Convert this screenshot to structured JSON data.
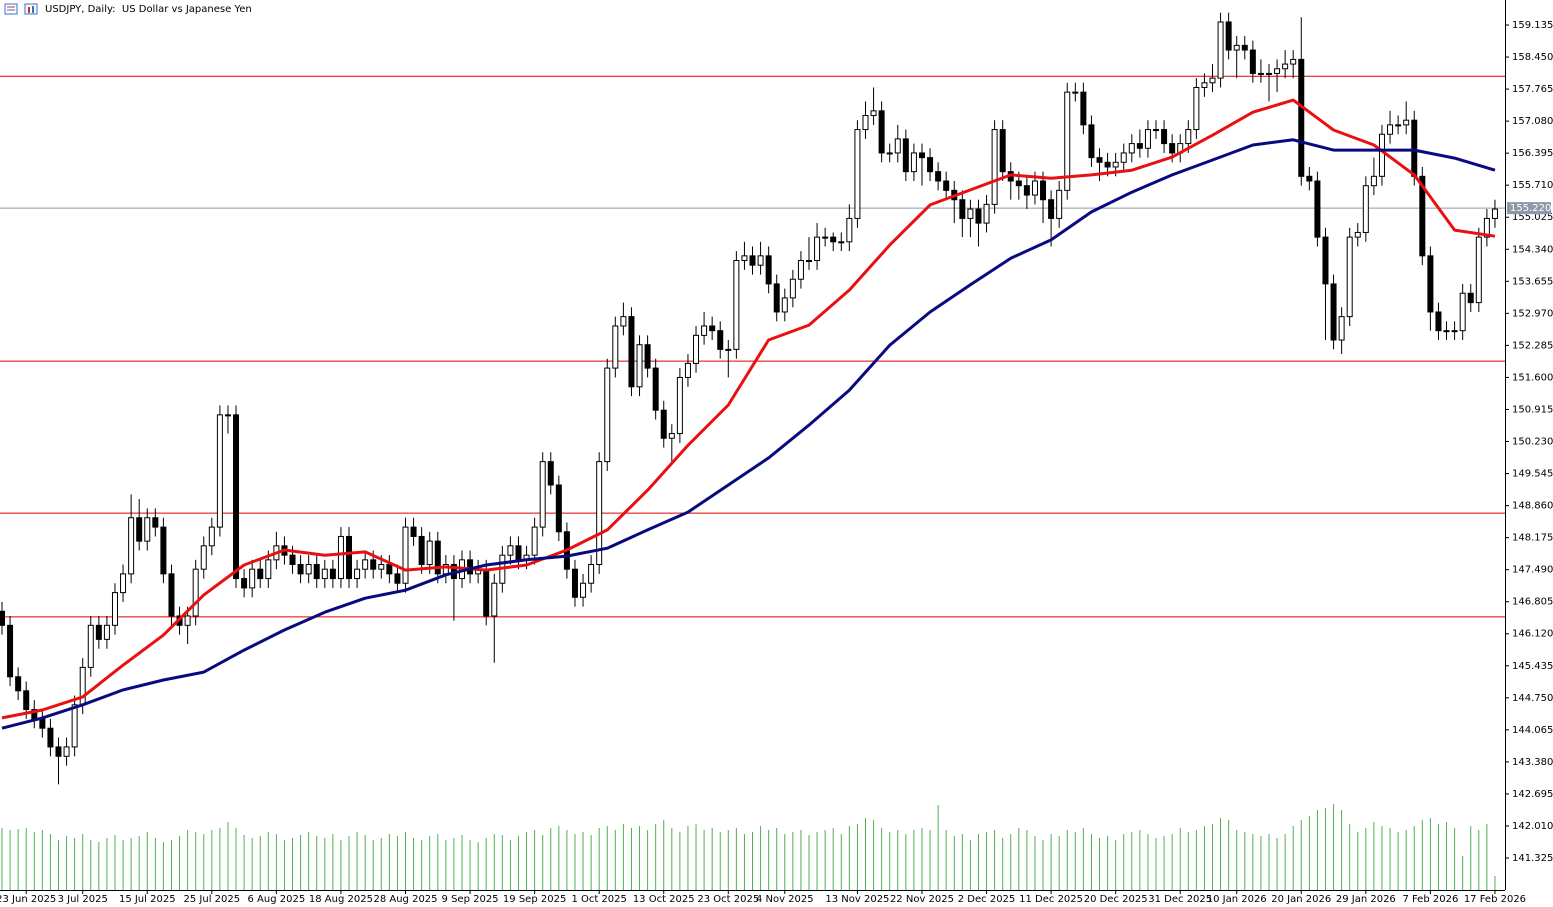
{
  "chart_data": {
    "type": "candlestick",
    "title": "USDJPY, Daily:  US Dollar vs Japanese Yen",
    "up_color": "#ffffff",
    "down_color": "#000000",
    "wick_color": "#000000",
    "ylim": [
      140.641,
      159.67
    ],
    "yticks": [
      159.135,
      {
        "value": 158.45,
        "label": "158.450"
      },
      157.765,
      {
        "value": 157.08,
        "label": "157.080"
      },
      156.395,
      {
        "value": 155.71,
        "label": "155.710"
      },
      155.025,
      {
        "value": 154.34,
        "label": "154.340"
      },
      153.655,
      {
        "value": 152.97,
        "label": "152.970"
      },
      152.285,
      {
        "value": 151.6,
        "label": "151.600"
      },
      150.915,
      {
        "value": 150.23,
        "label": "150.230"
      },
      149.545,
      {
        "value": 148.86,
        "label": "148.860"
      },
      148.175,
      {
        "value": 147.49,
        "label": "147.490"
      },
      146.805,
      {
        "value": 146.12,
        "label": "146.120"
      },
      145.435,
      {
        "value": 144.75,
        "label": "144.750"
      },
      144.065,
      {
        "value": 143.38,
        "label": "143.380"
      },
      142.695,
      {
        "value": 142.01,
        "label": "142.010"
      },
      141.325
    ],
    "xticks": [
      {
        "value": 3,
        "label": "23 Jun 2025"
      },
      {
        "value": 10,
        "label": "3 Jul 2025"
      },
      {
        "value": 18,
        "label": "15 Jul 2025"
      },
      {
        "value": 26,
        "label": "25 Jul 2025"
      },
      {
        "value": 34,
        "label": "6 Aug 2025"
      },
      {
        "value": 42,
        "label": "18 Aug 2025"
      },
      {
        "value": 50,
        "label": "28 Aug 2025"
      },
      {
        "value": 58,
        "label": "9 Sep 2025"
      },
      {
        "value": 66,
        "label": "19 Sep 2025"
      },
      {
        "value": 74,
        "label": "1 Oct 2025"
      },
      {
        "value": 82,
        "label": "13 Oct 2025"
      },
      {
        "value": 90,
        "label": "23 Oct 2025"
      },
      {
        "value": 97,
        "label": "4 Nov 2025"
      },
      {
        "value": 106,
        "label": "13 Nov 2025"
      },
      {
        "value": 114,
        "label": "22 Nov 2025"
      },
      {
        "value": 122,
        "label": "2 Dec 2025"
      },
      {
        "value": 130,
        "label": "11 Dec 2025"
      },
      {
        "value": 138,
        "label": "20 Dec 2025"
      },
      {
        "value": 146,
        "label": "31 Dec 2025"
      },
      {
        "value": 153,
        "label": "10 Jan 2026"
      },
      {
        "value": 161,
        "label": "20 Jan 2026"
      },
      {
        "value": 169,
        "label": "29 Jan 2026"
      },
      {
        "value": 177,
        "label": "7 Feb 2026"
      },
      {
        "value": 185,
        "label": "17 Feb 2026"
      }
    ],
    "open": [
      146.6,
      146.3,
      145.2,
      144.9,
      144.5,
      144.3,
      144.1,
      143.7,
      143.5,
      143.7,
      144.6,
      145.4,
      146.3,
      146.0,
      146.3,
      147.0,
      147.4,
      148.6,
      148.1,
      148.6,
      148.4,
      147.4,
      146.5,
      146.3,
      146.5,
      147.5,
      148.0,
      148.4,
      150.8,
      150.8,
      147.3,
      147.1,
      147.5,
      147.3,
      147.7,
      148.0,
      147.8,
      147.6,
      147.4,
      147.6,
      147.3,
      147.5,
      147.3,
      148.2,
      147.3,
      147.5,
      147.7,
      147.5,
      147.6,
      147.4,
      147.2,
      148.4,
      148.2,
      147.6,
      148.1,
      147.4,
      147.6,
      147.3,
      147.7,
      147.4,
      147.5,
      146.5,
      147.2,
      147.8,
      148.0,
      147.7,
      147.8,
      148.4,
      149.8,
      149.3,
      148.3,
      147.5,
      146.9,
      147.2,
      147.6,
      149.8,
      151.8,
      152.7,
      152.9,
      151.4,
      152.3,
      151.8,
      150.9,
      150.3,
      150.4,
      151.6,
      151.9,
      152.5,
      152.7,
      152.6,
      152.2,
      152.2,
      154.1,
      154.2,
      154.0,
      154.2,
      153.6,
      153.0,
      153.3,
      153.7,
      154.1,
      154.1,
      154.6,
      154.6,
      154.5,
      154.5,
      155.0,
      156.9,
      157.2,
      157.3,
      156.4,
      156.4,
      156.7,
      156.0,
      156.4,
      156.3,
      156.0,
      155.8,
      155.6,
      155.4,
      155.0,
      155.2,
      154.9,
      155.3,
      156.9,
      156.0,
      155.8,
      155.7,
      155.5,
      155.8,
      155.4,
      155.0,
      155.6,
      157.7,
      157.7,
      157.0,
      156.3,
      156.2,
      156.1,
      156.2,
      156.4,
      156.6,
      156.5,
      156.9,
      156.9,
      156.6,
      156.4,
      156.6,
      156.9,
      157.8,
      157.9,
      158.0,
      159.2,
      158.6,
      158.7,
      158.6,
      158.1,
      158.1,
      158.1,
      158.2,
      158.3,
      158.4,
      155.9,
      155.8,
      154.6,
      153.6,
      152.4,
      152.9,
      154.6,
      154.7,
      155.7,
      155.9,
      156.8,
      157.0,
      157.0,
      157.1,
      155.9,
      154.2,
      153.0,
      152.6,
      152.6,
      152.6,
      153.4,
      153.2,
      154.6,
      155.0
    ],
    "high": [
      146.8,
      146.5,
      145.4,
      145.1,
      144.7,
      144.5,
      144.3,
      143.9,
      143.9,
      144.8,
      145.6,
      146.5,
      146.5,
      146.5,
      147.2,
      147.6,
      149.1,
      149.0,
      148.8,
      148.8,
      148.6,
      147.6,
      146.7,
      146.7,
      147.7,
      148.2,
      148.6,
      151.0,
      151.0,
      151.0,
      147.5,
      147.7,
      147.7,
      147.9,
      148.3,
      148.2,
      148.0,
      147.8,
      147.8,
      147.8,
      147.7,
      147.7,
      148.4,
      148.4,
      147.7,
      147.9,
      147.9,
      147.8,
      147.8,
      147.6,
      148.6,
      148.6,
      148.4,
      148.3,
      148.3,
      147.8,
      147.8,
      147.9,
      147.9,
      147.7,
      147.7,
      147.4,
      148.0,
      148.2,
      148.2,
      148.0,
      148.6,
      150.0,
      150.0,
      149.5,
      148.5,
      147.7,
      147.4,
      147.8,
      150.0,
      152.0,
      152.9,
      153.2,
      153.1,
      152.5,
      152.5,
      152.0,
      151.1,
      150.6,
      151.8,
      152.1,
      152.7,
      153.0,
      152.9,
      152.8,
      152.4,
      154.3,
      154.5,
      154.4,
      154.5,
      154.4,
      153.8,
      153.5,
      153.9,
      154.3,
      154.6,
      154.9,
      154.8,
      154.7,
      154.7,
      155.3,
      157.1,
      157.5,
      157.8,
      157.5,
      156.6,
      157.0,
      156.9,
      156.6,
      156.6,
      156.5,
      156.2,
      156.0,
      155.8,
      155.6,
      155.4,
      155.4,
      155.5,
      157.1,
      157.1,
      156.2,
      156.0,
      155.9,
      156.0,
      156.0,
      155.6,
      155.8,
      157.9,
      157.9,
      157.9,
      157.2,
      156.5,
      156.4,
      156.4,
      156.6,
      156.8,
      156.9,
      157.1,
      157.1,
      157.1,
      156.8,
      156.8,
      157.1,
      158.0,
      158.1,
      158.3,
      159.4,
      159.4,
      158.9,
      158.9,
      158.8,
      158.4,
      158.3,
      158.4,
      158.6,
      158.6,
      159.3,
      156.1,
      156.0,
      154.8,
      153.8,
      153.1,
      154.8,
      154.9,
      155.9,
      156.3,
      157.0,
      157.3,
      157.2,
      157.5,
      157.3,
      156.1,
      154.4,
      153.2,
      152.8,
      152.8,
      153.6,
      153.6,
      154.8,
      155.2,
      155.4
    ],
    "low": [
      146.1,
      145.0,
      144.7,
      144.3,
      144.1,
      143.9,
      143.5,
      142.9,
      143.3,
      143.5,
      144.4,
      145.2,
      145.8,
      145.8,
      146.1,
      146.8,
      147.2,
      147.9,
      147.9,
      148.2,
      147.2,
      146.3,
      146.1,
      145.9,
      146.3,
      147.3,
      147.8,
      148.2,
      150.4,
      147.1,
      146.9,
      146.9,
      147.1,
      147.1,
      147.5,
      147.6,
      147.4,
      147.2,
      147.2,
      147.1,
      147.1,
      147.1,
      147.1,
      147.1,
      147.1,
      147.3,
      147.3,
      147.3,
      147.2,
      147.0,
      147.0,
      148.0,
      147.4,
      147.4,
      147.2,
      147.2,
      146.4,
      147.1,
      147.2,
      147.2,
      146.3,
      145.5,
      147.0,
      147.6,
      147.5,
      147.5,
      147.6,
      148.2,
      149.1,
      148.1,
      147.3,
      146.7,
      146.7,
      147.0,
      147.4,
      149.6,
      151.6,
      152.5,
      151.2,
      151.2,
      151.6,
      150.7,
      150.1,
      149.8,
      150.2,
      151.4,
      151.7,
      152.3,
      152.4,
      152.0,
      151.6,
      152.0,
      153.9,
      153.8,
      153.8,
      153.4,
      152.8,
      152.8,
      153.1,
      153.5,
      153.9,
      153.9,
      154.4,
      154.3,
      154.3,
      154.3,
      154.8,
      156.7,
      157.0,
      156.2,
      156.2,
      156.2,
      155.8,
      155.8,
      155.7,
      155.8,
      155.6,
      155.4,
      154.9,
      154.6,
      154.6,
      154.4,
      154.7,
      155.1,
      155.8,
      155.4,
      155.4,
      155.2,
      155.3,
      154.9,
      154.4,
      154.8,
      155.4,
      157.5,
      156.8,
      156.1,
      155.8,
      155.9,
      155.9,
      156.0,
      156.2,
      156.3,
      156.3,
      156.7,
      156.4,
      156.2,
      156.2,
      156.4,
      156.7,
      157.6,
      157.7,
      157.8,
      158.4,
      158.0,
      158.4,
      157.9,
      157.9,
      157.5,
      157.7,
      158.0,
      158.0,
      155.7,
      155.6,
      154.4,
      152.4,
      152.2,
      152.1,
      152.7,
      154.4,
      154.5,
      155.5,
      155.7,
      156.6,
      156.8,
      156.8,
      155.7,
      154.0,
      152.6,
      152.4,
      152.4,
      152.4,
      152.4,
      153.0,
      153.0,
      154.4,
      154.8
    ],
    "close": [
      146.3,
      145.2,
      144.9,
      144.5,
      144.3,
      144.1,
      143.7,
      143.5,
      143.7,
      144.6,
      145.4,
      146.3,
      146.0,
      146.3,
      147.0,
      147.4,
      148.6,
      148.1,
      148.6,
      148.4,
      147.4,
      146.5,
      146.3,
      146.5,
      147.5,
      148.0,
      148.4,
      150.8,
      150.8,
      147.3,
      147.1,
      147.5,
      147.3,
      147.7,
      148.0,
      147.8,
      147.6,
      147.4,
      147.6,
      147.3,
      147.5,
      147.3,
      148.2,
      147.3,
      147.5,
      147.7,
      147.5,
      147.6,
      147.4,
      147.2,
      148.4,
      148.2,
      147.6,
      148.1,
      147.4,
      147.6,
      147.3,
      147.7,
      147.4,
      147.5,
      146.5,
      147.2,
      147.8,
      148.0,
      147.7,
      147.8,
      148.4,
      149.8,
      149.3,
      148.3,
      147.5,
      146.9,
      147.2,
      147.6,
      149.8,
      151.8,
      152.7,
      152.9,
      151.4,
      152.3,
      151.8,
      150.9,
      150.3,
      150.4,
      151.6,
      151.9,
      152.5,
      152.7,
      152.6,
      152.2,
      152.2,
      154.1,
      154.2,
      154.0,
      154.2,
      153.6,
      153.0,
      153.3,
      153.7,
      154.1,
      154.1,
      154.6,
      154.6,
      154.5,
      154.5,
      155.0,
      156.9,
      157.2,
      157.3,
      156.4,
      156.4,
      156.7,
      156.0,
      156.4,
      156.3,
      156.0,
      155.8,
      155.6,
      155.4,
      155.0,
      155.2,
      154.9,
      155.3,
      156.9,
      156.0,
      155.8,
      155.7,
      155.5,
      155.8,
      155.4,
      155.0,
      155.6,
      157.7,
      157.7,
      157.0,
      156.3,
      156.2,
      156.1,
      156.2,
      156.4,
      156.6,
      156.5,
      156.9,
      156.9,
      156.6,
      156.4,
      156.6,
      156.9,
      157.8,
      157.9,
      158.0,
      159.2,
      158.6,
      158.7,
      158.6,
      158.1,
      158.1,
      158.1,
      158.2,
      158.3,
      158.4,
      155.9,
      155.8,
      154.6,
      153.6,
      152.4,
      152.9,
      154.6,
      154.7,
      155.7,
      155.9,
      156.8,
      157.0,
      157.0,
      157.1,
      155.9,
      154.2,
      153.0,
      152.6,
      152.6,
      152.6,
      153.4,
      153.2,
      154.6,
      155.0,
      155.2
    ],
    "volume": {
      "color": "#4caf50",
      "values": [
        62,
        60,
        61,
        62,
        58,
        60,
        56,
        50,
        54,
        52,
        56,
        50,
        48,
        52,
        55,
        50,
        52,
        54,
        58,
        52,
        48,
        50,
        54,
        60,
        58,
        56,
        60,
        62,
        68,
        62,
        55,
        52,
        54,
        58,
        56,
        50,
        52,
        55,
        58,
        54,
        52,
        56,
        50,
        54,
        58,
        55,
        50,
        52,
        56,
        54,
        58,
        52,
        50,
        54,
        56,
        50,
        52,
        55,
        50,
        48,
        52,
        56,
        55,
        50,
        54,
        58,
        60,
        55,
        62,
        64,
        60,
        56,
        58,
        55,
        62,
        64,
        60,
        66,
        62,
        64,
        60,
        66,
        70,
        62,
        58,
        64,
        66,
        60,
        62,
        58,
        60,
        62,
        56,
        58,
        64,
        60,
        62,
        56,
        58,
        60,
        55,
        58,
        60,
        62,
        56,
        64,
        66,
        72,
        70,
        62,
        58,
        60,
        56,
        60,
        62,
        60,
        85,
        60,
        54,
        56,
        50,
        56,
        58,
        60,
        52,
        56,
        62,
        60,
        54,
        50,
        56,
        54,
        60,
        58,
        62,
        56,
        52,
        54,
        50,
        56,
        58,
        60,
        56,
        52,
        54,
        56,
        62,
        58,
        60,
        64,
        66,
        72,
        70,
        60,
        58,
        56,
        54,
        56,
        52,
        56,
        64,
        70,
        74,
        80,
        82,
        86,
        80,
        66,
        58,
        62,
        68,
        64,
        62,
        58,
        60,
        64,
        70,
        72,
        66,
        68,
        62,
        34,
        64,
        60,
        66,
        14
      ]
    },
    "series": [
      {
        "color": "#e81010",
        "x": [
          0,
          5,
          10,
          15,
          20,
          25,
          30,
          35,
          40,
          45,
          50,
          55,
          60,
          65,
          70,
          75,
          80,
          85,
          90,
          95,
          100,
          105,
          110,
          115,
          120,
          125,
          130,
          135,
          140,
          145,
          150,
          155,
          160,
          165,
          170,
          175,
          180,
          185
        ],
        "values": [
          144.32,
          144.49,
          144.77,
          145.45,
          146.09,
          146.95,
          147.59,
          147.91,
          147.8,
          147.87,
          147.48,
          147.55,
          147.48,
          147.59,
          147.91,
          148.34,
          149.19,
          150.15,
          151.01,
          152.4,
          152.72,
          153.47,
          154.43,
          155.29,
          155.61,
          155.93,
          155.86,
          155.93,
          156.03,
          156.31,
          156.78,
          157.27,
          157.53,
          156.89,
          156.57,
          155.93,
          154.75,
          154.62
        ]
      },
      {
        "color": "#0a0a80",
        "x": [
          0,
          5,
          10,
          15,
          20,
          25,
          30,
          35,
          40,
          45,
          50,
          55,
          60,
          65,
          70,
          75,
          80,
          85,
          90,
          95,
          100,
          105,
          110,
          115,
          120,
          125,
          130,
          135,
          140,
          145,
          150,
          155,
          160,
          165,
          170,
          175,
          180,
          185
        ],
        "values": [
          144.1,
          144.32,
          144.6,
          144.92,
          145.13,
          145.3,
          145.77,
          146.2,
          146.58,
          146.88,
          147.05,
          147.38,
          147.59,
          147.7,
          147.78,
          147.95,
          148.34,
          148.72,
          149.3,
          149.88,
          150.58,
          151.33,
          152.29,
          153.0,
          153.58,
          154.15,
          154.54,
          155.14,
          155.56,
          155.93,
          156.25,
          156.57,
          156.68,
          156.46,
          156.46,
          156.46,
          156.29,
          156.03
        ]
      }
    ],
    "hlines": [
      {
        "value": 158.04,
        "color": "#e00000"
      },
      {
        "value": 151.95,
        "color": "#e00000"
      },
      {
        "value": 148.7,
        "color": "#e00000"
      },
      {
        "value": 146.48,
        "color": "#e00000"
      }
    ],
    "price_line": {
      "value": 155.22,
      "label": "155.220",
      "color": "#8a9aa8"
    }
  }
}
